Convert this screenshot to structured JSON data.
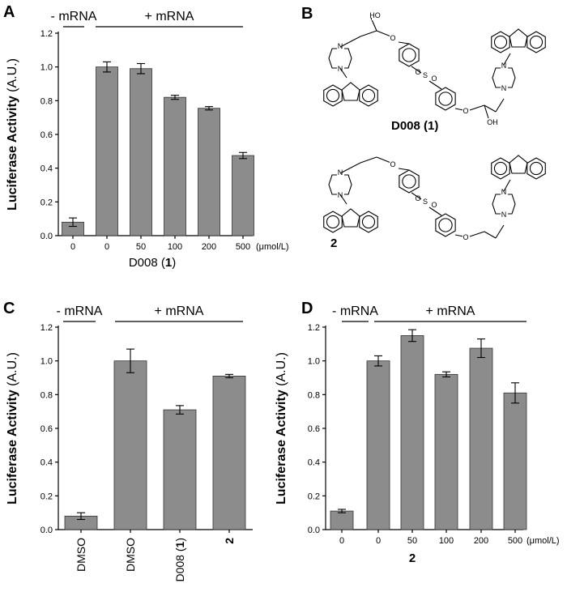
{
  "chart_data": [
    {
      "panel": "A",
      "type": "bar",
      "ylabel": "Luciferase Activity",
      "ylabel_unit": "(A.U.)",
      "xlabel": "D008",
      "xlabel_suffix": "(1)",
      "x_unit": "(μmol/L)",
      "ylim": [
        0,
        1.2
      ],
      "yticks": [
        "0.0",
        "0.2",
        "0.4",
        "0.6",
        "0.8",
        "1.0",
        "1.2"
      ],
      "categories": [
        "0",
        "0",
        "50",
        "100",
        "200",
        "500"
      ],
      "values": [
        0.08,
        1.0,
        0.99,
        0.82,
        0.755,
        0.475
      ],
      "errors": [
        0.025,
        0.03,
        0.03,
        0.012,
        0.01,
        0.018
      ],
      "groups": [
        {
          "label": "- mRNA",
          "bars": [
            0,
            0
          ]
        },
        {
          "label": "+ mRNA",
          "bars": [
            1,
            5
          ]
        }
      ]
    },
    {
      "panel": "C",
      "type": "bar",
      "ylabel": "Luciferase Activity",
      "ylabel_unit": "(A.U.)",
      "ylim": [
        0,
        1.2
      ],
      "yticks": [
        "0.0",
        "0.2",
        "0.4",
        "0.6",
        "0.8",
        "1.0",
        "1.2"
      ],
      "categories": [
        "DMSO",
        "DMSO",
        "D008 (1)",
        "2"
      ],
      "values": [
        0.08,
        1.0,
        0.71,
        0.91
      ],
      "errors": [
        0.02,
        0.07,
        0.025,
        0.01
      ],
      "groups": [
        {
          "label": "- mRNA",
          "bars": [
            0,
            0
          ]
        },
        {
          "label": "+ mRNA",
          "bars": [
            1,
            3
          ]
        }
      ]
    },
    {
      "panel": "D",
      "type": "bar",
      "ylabel": "Luciferase Activity",
      "ylabel_unit": "(A.U.)",
      "xlabel": "2",
      "x_unit": "(μmol/L)",
      "ylim": [
        0,
        1.2
      ],
      "yticks": [
        "0.0",
        "0.2",
        "0.4",
        "0.6",
        "0.8",
        "1.0",
        "1.2"
      ],
      "categories": [
        "0",
        "0",
        "50",
        "100",
        "200",
        "500"
      ],
      "values": [
        0.11,
        1.0,
        1.15,
        0.92,
        1.075,
        0.81
      ],
      "errors": [
        0.01,
        0.03,
        0.035,
        0.015,
        0.055,
        0.06
      ],
      "groups": [
        {
          "label": "- mRNA",
          "bars": [
            0,
            0
          ]
        },
        {
          "label": "+ mRNA",
          "bars": [
            1,
            5
          ]
        }
      ]
    }
  ],
  "panels": {
    "a": "A",
    "b": "B",
    "c": "C",
    "d": "D"
  },
  "structures": {
    "compound1_label": "D008 (1)",
    "compound2_label": "2",
    "atoms": {
      "N": "N",
      "O": "O",
      "S": "S",
      "HO": "HO",
      "OH": "OH"
    }
  },
  "colors": {
    "bar_fill": "#8c8c8c",
    "bar_stroke": "#333333",
    "axis": "#000000"
  }
}
